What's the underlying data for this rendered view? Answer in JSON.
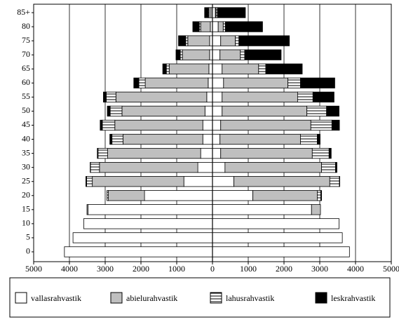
{
  "chart_data": {
    "type": "pyramid",
    "categories": [
      "0",
      "5",
      "10",
      "15",
      "20",
      "25",
      "30",
      "35",
      "40",
      "45",
      "50",
      "55",
      "60",
      "65",
      "70",
      "75",
      "80",
      "85+"
    ],
    "series": [
      {
        "name": "vallasrahvastik",
        "color": "#ffffff",
        "left": [
          -4140,
          -3900,
          -3600,
          -3480,
          -1900,
          -800,
          -410,
          -330,
          -270,
          -270,
          -210,
          -160,
          -120,
          -100,
          -80,
          -80,
          -60,
          -40
        ],
        "right": [
          3830,
          3630,
          3540,
          2770,
          1130,
          600,
          350,
          230,
          210,
          230,
          270,
          270,
          310,
          270,
          210,
          230,
          160,
          80
        ]
      },
      {
        "name": "abielurahvastik",
        "color": "#bfbfbf",
        "left": [
          0,
          0,
          0,
          -30,
          -1010,
          -2560,
          -2750,
          -2600,
          -2230,
          -2460,
          -2320,
          -2540,
          -1760,
          -1110,
          -760,
          -610,
          -270,
          -60
        ],
        "right": [
          0,
          0,
          0,
          250,
          1800,
          2680,
          2700,
          2560,
          2250,
          2520,
          2370,
          2110,
          1800,
          1020,
          570,
          410,
          140,
          20
        ]
      },
      {
        "name": "lahusrahvastik",
        "color": "#ffffff",
        "pattern": "horizontal-lines",
        "left": [
          0,
          0,
          0,
          0,
          -40,
          -160,
          -250,
          -270,
          -310,
          -350,
          -330,
          -270,
          -180,
          -80,
          -60,
          -60,
          -40,
          -20
        ],
        "right": [
          0,
          0,
          0,
          0,
          100,
          270,
          390,
          470,
          470,
          590,
          550,
          430,
          350,
          200,
          120,
          100,
          60,
          40
        ]
      },
      {
        "name": "leskrahvastik",
        "color": "#000000",
        "left": [
          0,
          0,
          0,
          0,
          0,
          -20,
          -10,
          -20,
          -60,
          -60,
          -80,
          -80,
          -140,
          -100,
          -120,
          -200,
          -180,
          -100
        ],
        "right": [
          0,
          0,
          0,
          0,
          20,
          10,
          40,
          60,
          80,
          210,
          350,
          590,
          960,
          1020,
          1020,
          1410,
          1040,
          780
        ]
      }
    ],
    "xlim": [
      -5000,
      5000
    ],
    "xticks": [
      {
        "value": -5000,
        "label": "5000"
      },
      {
        "value": -4000,
        "label": "4000"
      },
      {
        "value": -3000,
        "label": "3000"
      },
      {
        "value": -2000,
        "label": "2000"
      },
      {
        "value": -1000,
        "label": "1000"
      },
      0,
      1000,
      2000,
      3000,
      4000,
      5000
    ],
    "grid": true
  }
}
